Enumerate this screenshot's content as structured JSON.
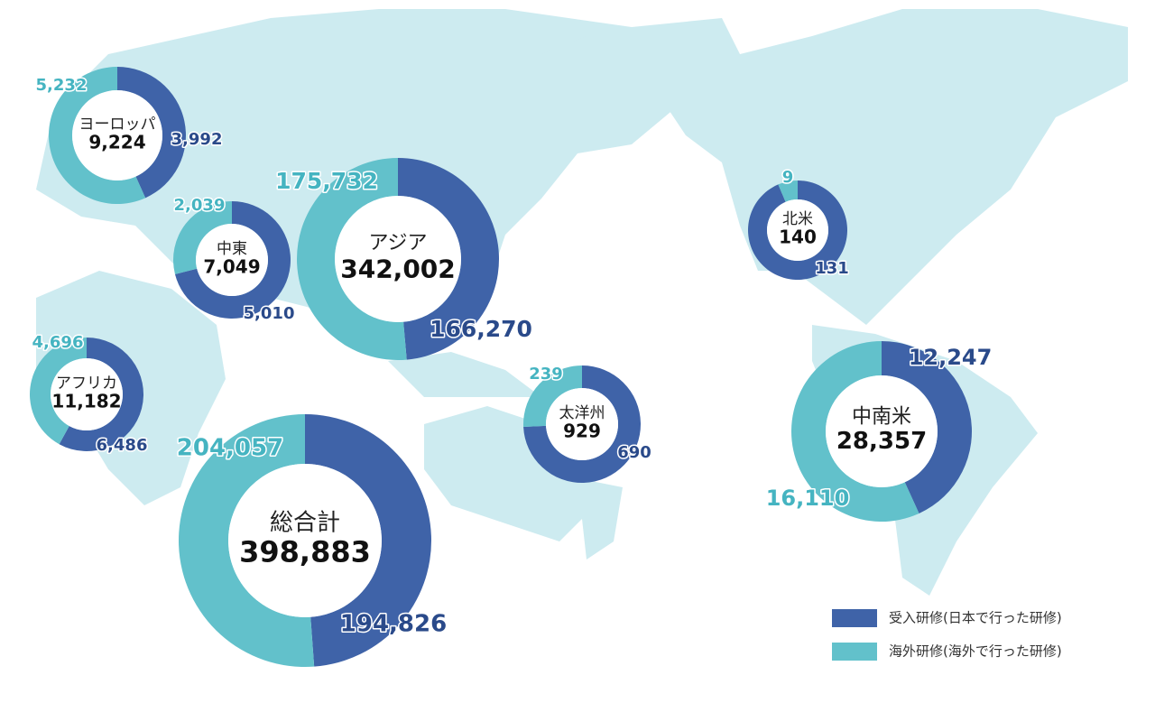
{
  "legend": {
    "position": "bottom-right",
    "items": [
      {
        "name": "受入研修(日本で行った研修)",
        "color": "#3f63a8"
      },
      {
        "name": "海外研修(海外で行った研修)",
        "color": "#62c1cb"
      }
    ]
  },
  "chart_data": [
    {
      "type": "pie",
      "title": "ヨーロッパ",
      "total": {
        "value": 9224,
        "label": "9,224"
      },
      "values": [
        3992,
        5232
      ],
      "value_labels": [
        "3,992",
        "5,232"
      ]
    },
    {
      "type": "pie",
      "title": "中東",
      "total": {
        "value": 7049,
        "label": "7,049"
      },
      "values": [
        5010,
        2039
      ],
      "value_labels": [
        "5,010",
        "2,039"
      ]
    },
    {
      "type": "pie",
      "title": "アジア",
      "total": {
        "value": 342002,
        "label": "342,002"
      },
      "values": [
        166270,
        175732
      ],
      "value_labels": [
        "166,270",
        "175,732"
      ]
    },
    {
      "type": "pie",
      "title": "アフリカ",
      "total": {
        "value": 11182,
        "label": "11,182"
      },
      "values": [
        6486,
        4696
      ],
      "value_labels": [
        "6,486",
        "4,696"
      ]
    },
    {
      "type": "pie",
      "title": "太洋州",
      "total": {
        "value": 929,
        "label": "929"
      },
      "values": [
        690,
        239
      ],
      "value_labels": [
        "690",
        "239"
      ]
    },
    {
      "type": "pie",
      "title": "北米",
      "total": {
        "value": 140,
        "label": "140"
      },
      "values": [
        131,
        9
      ],
      "value_labels": [
        "131",
        "9"
      ]
    },
    {
      "type": "pie",
      "title": "中南米",
      "total": {
        "value": 28357,
        "label": "28,357"
      },
      "values": [
        12247,
        16110
      ],
      "value_labels": [
        "12,247",
        "16,110"
      ]
    },
    {
      "type": "pie",
      "title": "総合計",
      "total": {
        "value": 398883,
        "label": "398,883"
      },
      "values": [
        194826,
        204057
      ],
      "value_labels": [
        "194,826",
        "204,057"
      ]
    }
  ]
}
